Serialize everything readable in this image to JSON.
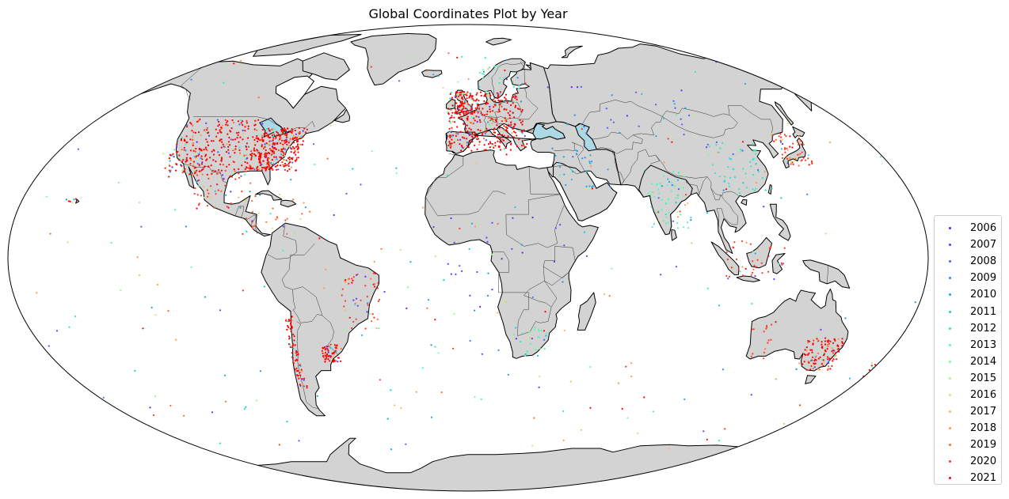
{
  "title": "Global Coordinates Plot by Year",
  "colors": {
    "land": "#d3d3d3",
    "coast": "#000000",
    "border": "#333333",
    "ocean": "#ffffff"
  },
  "legend": {
    "placement": "lower-right",
    "entries": [
      {
        "label": "2006",
        "color": "#6a1bff"
      },
      {
        "label": "2007",
        "color": "#5a3bff"
      },
      {
        "label": "2008",
        "color": "#4a5dfb"
      },
      {
        "label": "2009",
        "color": "#2f86f5"
      },
      {
        "label": "2010",
        "color": "#17a6ec"
      },
      {
        "label": "2011",
        "color": "#10c8dd"
      },
      {
        "label": "2012",
        "color": "#2ee6cc"
      },
      {
        "label": "2013",
        "color": "#52f6b8"
      },
      {
        "label": "2014",
        "color": "#7cfca0"
      },
      {
        "label": "2015",
        "color": "#a4f88a"
      },
      {
        "label": "2016",
        "color": "#c6ea74"
      },
      {
        "label": "2017",
        "color": "#f0c060"
      },
      {
        "label": "2018",
        "color": "#ff9848"
      },
      {
        "label": "2019",
        "color": "#ff6a32"
      },
      {
        "label": "2020",
        "color": "#ff3a1c"
      },
      {
        "label": "2021",
        "color": "#ff0000"
      }
    ]
  },
  "chart_data": {
    "type": "scatter",
    "projection": "robinson",
    "title": "Global Coordinates Plot by Year",
    "series_field": "year",
    "clusters": [
      {
        "region": "Eastern United States",
        "lon": [
          -90,
          -70
        ],
        "lat": [
          30,
          45
        ],
        "count": 360,
        "dominant_year": "2021"
      },
      {
        "region": "Central/Western United States",
        "lon": [
          -124,
          -90
        ],
        "lat": [
          28,
          48
        ],
        "count": 300,
        "dominant_year": "2021"
      },
      {
        "region": "Western/Central Europe",
        "lon": [
          -9,
          25
        ],
        "lat": [
          37,
          58
        ],
        "count": 380,
        "dominant_year": "2021"
      },
      {
        "region": "United Kingdom",
        "lon": [
          -6,
          2
        ],
        "lat": [
          50,
          58
        ],
        "count": 60,
        "dominant_year": "2021"
      },
      {
        "region": "Japan",
        "lon": [
          130,
          142
        ],
        "lat": [
          31,
          43
        ],
        "count": 60,
        "dominant_year": "2020"
      },
      {
        "region": "South-East Australia",
        "lon": [
          138,
          153
        ],
        "lat": [
          -39,
          -27
        ],
        "count": 120,
        "dominant_year": "2021"
      },
      {
        "region": "Chile",
        "lon": [
          -73,
          -70
        ],
        "lat": [
          -45,
          -20
        ],
        "count": 80,
        "dominant_year": "2021"
      },
      {
        "region": "Uruguay / Buenos Aires",
        "lon": [
          -60,
          -53
        ],
        "lat": [
          -36,
          -30
        ],
        "count": 70,
        "dominant_year": "2021"
      },
      {
        "region": "India",
        "lon": [
          72,
          88
        ],
        "lat": [
          10,
          30
        ],
        "count": 70,
        "dominant_year": "2013"
      },
      {
        "region": "China",
        "lon": [
          100,
          122
        ],
        "lat": [
          22,
          40
        ],
        "count": 60,
        "dominant_year": "2012"
      },
      {
        "region": "Eastern Brazil",
        "lon": [
          -50,
          -35
        ],
        "lat": [
          -25,
          -5
        ],
        "count": 50,
        "dominant_year": "2020"
      },
      {
        "region": "Mexico",
        "lon": [
          -110,
          -90
        ],
        "lat": [
          16,
          30
        ],
        "count": 45,
        "dominant_year": "2020"
      },
      {
        "region": "Central America / Caribbean",
        "lon": [
          -90,
          -60
        ],
        "lat": [
          8,
          22
        ],
        "count": 35,
        "dominant_year": "2019"
      },
      {
        "region": "South Africa",
        "lon": [
          18,
          32
        ],
        "lat": [
          -34,
          -24
        ],
        "count": 30,
        "dominant_year": "2013"
      },
      {
        "region": "Malaysia / Indonesia",
        "lon": [
          100,
          125
        ],
        "lat": [
          -8,
          6
        ],
        "count": 40,
        "dominant_year": "2020"
      },
      {
        "region": "Middle East",
        "lon": [
          35,
          58
        ],
        "lat": [
          24,
          38
        ],
        "count": 30,
        "dominant_year": "2010"
      },
      {
        "region": "Africa",
        "lon": [
          -15,
          40
        ],
        "lat": [
          -20,
          15
        ],
        "count": 35,
        "dominant_year": "2007"
      },
      {
        "region": "Scandinavia",
        "lon": [
          5,
          30
        ],
        "lat": [
          58,
          68
        ],
        "count": 25,
        "dominant_year": "2013"
      },
      {
        "region": "New Zealand",
        "lon": [
          168,
          178
        ],
        "lat": [
          -46,
          -36
        ],
        "count": 20,
        "dominant_year": "2021"
      },
      {
        "region": "Russia / Central Asia",
        "lon": [
          40,
          100
        ],
        "lat": [
          42,
          60
        ],
        "count": 30,
        "dominant_year": "2008"
      },
      {
        "region": "Western Australia",
        "lon": [
          114,
          125
        ],
        "lat": [
          -35,
          -20
        ],
        "count": 15,
        "dominant_year": "2020"
      },
      {
        "region": "Hawaii",
        "lon": [
          -160,
          -155
        ],
        "lat": [
          19,
          22
        ],
        "count": 6,
        "dominant_year": "2021"
      },
      {
        "region": "Open ocean (scattered)",
        "lon": [
          -180,
          180
        ],
        "lat": [
          -70,
          75
        ],
        "count": 260,
        "dominant_year": "mixed"
      }
    ],
    "legend_placement": "lower-right",
    "grid": false
  }
}
